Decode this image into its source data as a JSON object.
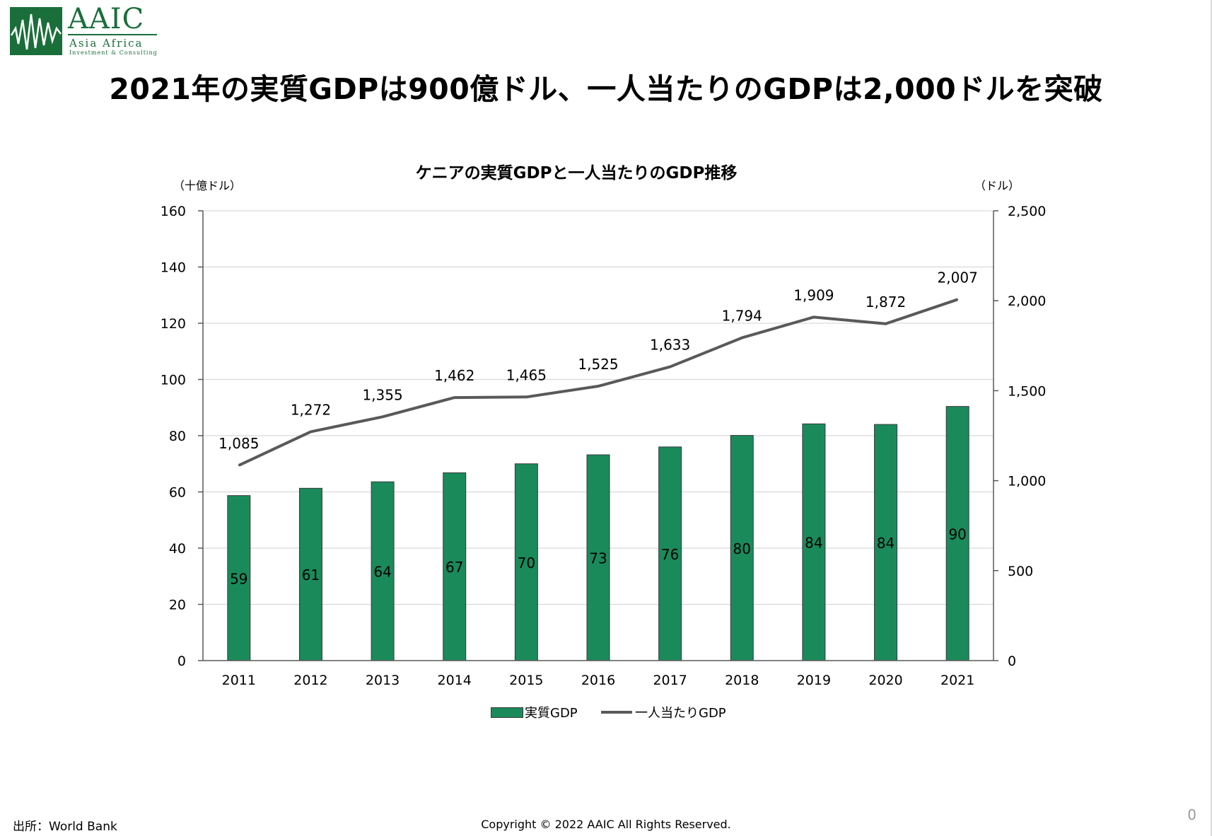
{
  "header": {
    "logo_name": "AAIC",
    "logo_tagline": "Asia Africa",
    "logo_subline": "Investment & Consulting",
    "title": "2021年の実質GDPは900億ドル、一人当たりのGDPは2,000ドルを突破"
  },
  "chart_data": {
    "type": "bar",
    "title": "ケニアの実質GDPと一人当たりのGDP推移",
    "y_left_unit": "（十億ドル）",
    "y_right_unit": "（ドル）",
    "categories": [
      "2011",
      "2012",
      "2013",
      "2014",
      "2015",
      "2016",
      "2017",
      "2018",
      "2019",
      "2020",
      "2021"
    ],
    "y_left_range": [
      0,
      160
    ],
    "y_left_ticks": [
      "0",
      "20",
      "40",
      "60",
      "80",
      "100",
      "120",
      "140",
      "160"
    ],
    "y_right_range": [
      0,
      2500
    ],
    "y_right_ticks": [
      "0",
      "500",
      "1,000",
      "1,500",
      "2,000",
      "2,500"
    ],
    "grid": true,
    "legend_position": "bottom",
    "series": [
      {
        "name": "実質GDP",
        "type": "bar",
        "axis": "left",
        "color": "#1a8a5b",
        "values": [
          58.7,
          61.3,
          63.6,
          66.8,
          70.0,
          73.2,
          76.0,
          80.1,
          84.2,
          84.0,
          90.4
        ],
        "labels": [
          "59",
          "61",
          "64",
          "67",
          "70",
          "73",
          "76",
          "80",
          "84",
          "84",
          "90"
        ]
      },
      {
        "name": "一人当たりGDP",
        "type": "line",
        "axis": "right",
        "color": "#595959",
        "values": [
          1085,
          1272,
          1355,
          1462,
          1465,
          1525,
          1633,
          1794,
          1909,
          1872,
          2007
        ],
        "labels": [
          "1,085",
          "1,272",
          "1,355",
          "1,462",
          "1,465",
          "1,525",
          "1,633",
          "1,794",
          "1,909",
          "1,872",
          "2,007"
        ]
      }
    ]
  },
  "footer": {
    "source": "出所：World Bank",
    "copyright": "Copyright © 2022 AAIC All Rights Reserved.",
    "page_number": "0"
  }
}
